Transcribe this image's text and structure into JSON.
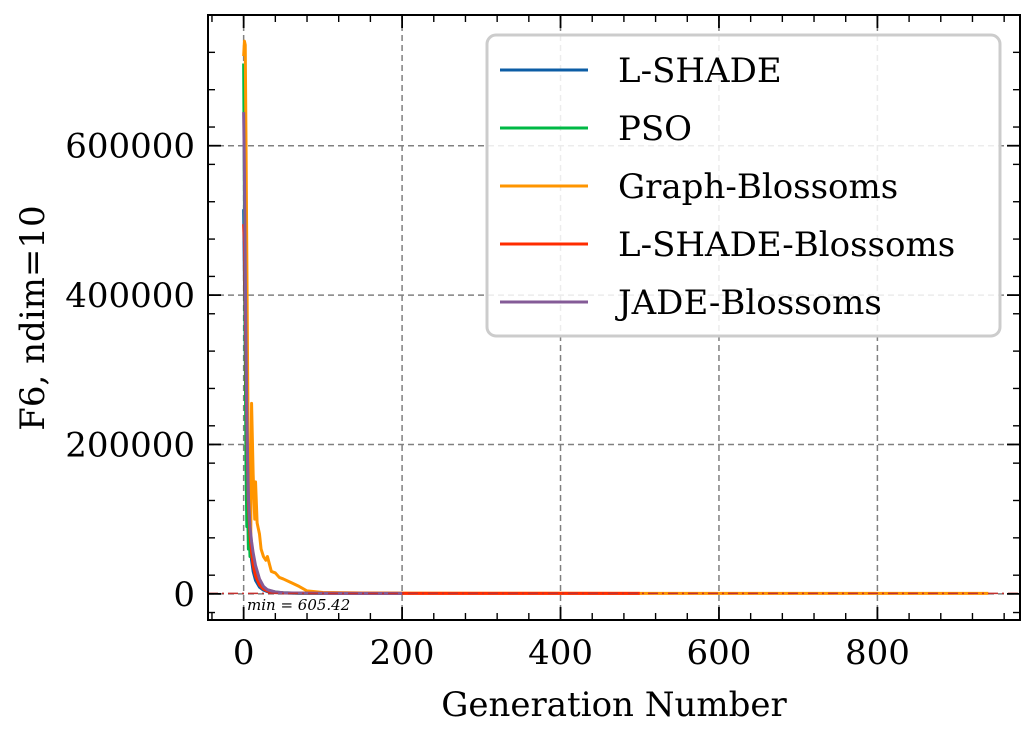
{
  "chart_data": {
    "type": "line",
    "title": "",
    "xlabel": "Generation Number",
    "ylabel": "F6, ndim=10",
    "xlim": [
      -45,
      980
    ],
    "ylim": [
      -35000,
      775000
    ],
    "xticks": [
      0,
      200,
      400,
      600,
      800
    ],
    "yticks": [
      0,
      200000,
      400000,
      600000
    ],
    "grid": true,
    "legend_position": "top-right",
    "annotation": {
      "text": "min = 605.42",
      "x": 5,
      "y": -16000
    },
    "reference_line": {
      "y": 605.42,
      "color": "#c2312f",
      "style": "dash-dot"
    },
    "series": [
      {
        "name": "L-SHADE",
        "color": "#0c5da5",
        "x": [
          0,
          1,
          2,
          3,
          4,
          5,
          6,
          8,
          10,
          12,
          15,
          20,
          25,
          30,
          40,
          50,
          70,
          100,
          150,
          200
        ],
        "y": [
          515000,
          420000,
          330000,
          260000,
          200000,
          150000,
          110000,
          70000,
          45000,
          30000,
          18000,
          9000,
          5000,
          3000,
          1800,
          1200,
          900,
          750,
          680,
          650
        ]
      },
      {
        "name": "PSO",
        "color": "#00b945",
        "x": [
          0,
          1,
          2,
          3,
          4,
          5,
          6,
          7,
          8,
          10,
          12,
          15,
          18,
          20,
          25,
          30,
          40,
          50,
          70,
          100
        ],
        "y": [
          710000,
          520000,
          330000,
          170000,
          90000,
          120000,
          60000,
          85000,
          50000,
          65000,
          40000,
          30000,
          22000,
          15000,
          9000,
          5000,
          2500,
          1500,
          900,
          700
        ]
      },
      {
        "name": "Graph-Blossoms",
        "color": "#ff9500",
        "x": [
          0,
          1,
          2,
          3,
          4,
          5,
          6,
          7,
          8,
          9,
          10,
          12,
          14,
          15,
          17,
          20,
          22,
          25,
          28,
          30,
          35,
          40,
          45,
          50,
          60,
          70,
          80,
          100,
          150,
          200,
          300,
          400,
          500,
          600,
          700,
          800,
          940
        ],
        "y": [
          720000,
          740000,
          735000,
          600000,
          450000,
          300000,
          180000,
          120000,
          90000,
          80000,
          255000,
          160000,
          100000,
          150000,
          95000,
          80000,
          60000,
          50000,
          45000,
          50000,
          30000,
          28000,
          22000,
          20000,
          15000,
          10000,
          4000,
          1800,
          1200,
          1000,
          850,
          780,
          720,
          680,
          650,
          630,
          620
        ]
      },
      {
        "name": "L-SHADE-Blossoms",
        "color": "#ff2c00",
        "x": [
          0,
          1,
          2,
          3,
          4,
          5,
          6,
          8,
          10,
          12,
          15,
          20,
          25,
          30,
          40,
          50,
          70,
          100,
          200,
          300,
          400,
          500
        ],
        "y": [
          495000,
          470000,
          390000,
          300000,
          230000,
          170000,
          120000,
          80000,
          55000,
          38000,
          24000,
          12000,
          6500,
          3800,
          2000,
          1300,
          950,
          800,
          700,
          660,
          630,
          620
        ]
      },
      {
        "name": "JADE-Blossoms",
        "color": "#845b97",
        "x": [
          0,
          1,
          2,
          3,
          4,
          5,
          6,
          8,
          10,
          12,
          15,
          20,
          25,
          30,
          40,
          50,
          70,
          100,
          150,
          200
        ],
        "y": [
          645000,
          560000,
          440000,
          330000,
          240000,
          180000,
          130000,
          90000,
          70000,
          55000,
          38000,
          20000,
          10000,
          5500,
          2500,
          1500,
          1000,
          800,
          700,
          650
        ]
      }
    ]
  }
}
